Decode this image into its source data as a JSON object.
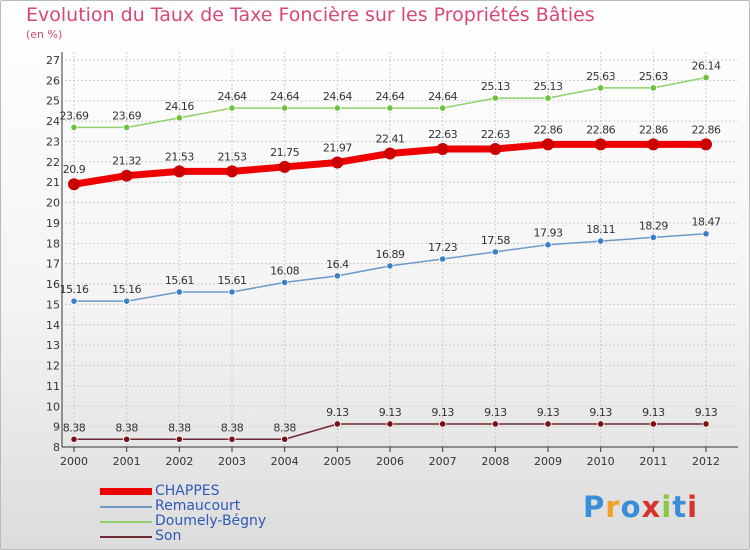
{
  "title": "Evolution du Taux de Taxe Foncière sur les Propriétés Bâties",
  "subtitle": "(en %)",
  "logo": {
    "text": "Proxiti",
    "colors": [
      "#3a8dd8",
      "#f1a12a",
      "#3a8dd8",
      "#d8322a",
      "#8cc63f",
      "#3a8dd8",
      "#d8322a"
    ]
  },
  "colors": {
    "title": "#d9477a",
    "axis": "#333333",
    "grid": "#cccccc",
    "legend_text": "#2f5ab6"
  },
  "chart_data": {
    "type": "line",
    "x": [
      "2000",
      "2001",
      "2002",
      "2003",
      "2004",
      "2005",
      "2006",
      "2007",
      "2008",
      "2009",
      "2010",
      "2011",
      "2012"
    ],
    "ylim": [
      8,
      27
    ],
    "yticks": [
      8,
      9,
      10,
      11,
      12,
      13,
      14,
      15,
      16,
      17,
      18,
      19,
      20,
      21,
      22,
      23,
      24,
      25,
      26,
      27
    ],
    "grid": true,
    "legend_position": "bottom-left",
    "series": [
      {
        "name": "CHAPPES",
        "color": "#ee0000",
        "marker": "#cc0000",
        "width": 7,
        "radius": 6,
        "values": [
          20.9,
          21.32,
          21.53,
          21.53,
          21.75,
          21.97,
          22.41,
          22.63,
          22.63,
          22.86,
          22.86,
          22.86,
          22.86
        ],
        "labels": [
          "20.9",
          "21.32",
          "21.53",
          "21.53",
          "21.75",
          "21.97",
          "22.41",
          "22.63",
          "22.63",
          "22.86",
          "22.86",
          "22.86",
          "22.86"
        ]
      },
      {
        "name": "Remaucourt",
        "color": "#6d99c8",
        "marker": "#3b80c7",
        "width": 1.5,
        "radius": 3.2,
        "values": [
          15.16,
          15.16,
          15.61,
          15.61,
          16.08,
          16.4,
          16.89,
          17.23,
          17.58,
          17.93,
          18.11,
          18.29,
          18.47
        ],
        "labels": [
          "15.16",
          "15.16",
          "15.61",
          "15.61",
          "16.08",
          "16.4",
          "16.89",
          "17.23",
          "17.58",
          "17.93",
          "18.11",
          "18.29",
          "18.47"
        ]
      },
      {
        "name": "Doumely-Bégny",
        "color": "#8fd069",
        "marker": "#6cc23b",
        "width": 1.5,
        "radius": 3.2,
        "values": [
          23.69,
          23.69,
          24.16,
          24.64,
          24.64,
          24.64,
          24.64,
          24.64,
          25.13,
          25.13,
          25.63,
          25.63,
          26.14
        ],
        "labels": [
          "23.69",
          "23.69",
          "24.16",
          "24.64",
          "24.64",
          "24.64",
          "24.64",
          "24.64",
          "25.13",
          "25.13",
          "25.63",
          "25.63",
          "26.14"
        ]
      },
      {
        "name": "Son",
        "color": "#6b2b34",
        "marker": "#7a0f14",
        "width": 1.5,
        "radius": 3.2,
        "values": [
          8.38,
          8.38,
          8.38,
          8.38,
          8.38,
          9.13,
          9.13,
          9.13,
          9.13,
          9.13,
          9.13,
          9.13,
          9.13
        ],
        "labels": [
          "8.38",
          "8.38",
          "8.38",
          "8.38",
          "8.38",
          "9.13",
          "9.13",
          "9.13",
          "9.13",
          "9.13",
          "9.13",
          "9.13",
          "9.13"
        ]
      }
    ]
  }
}
